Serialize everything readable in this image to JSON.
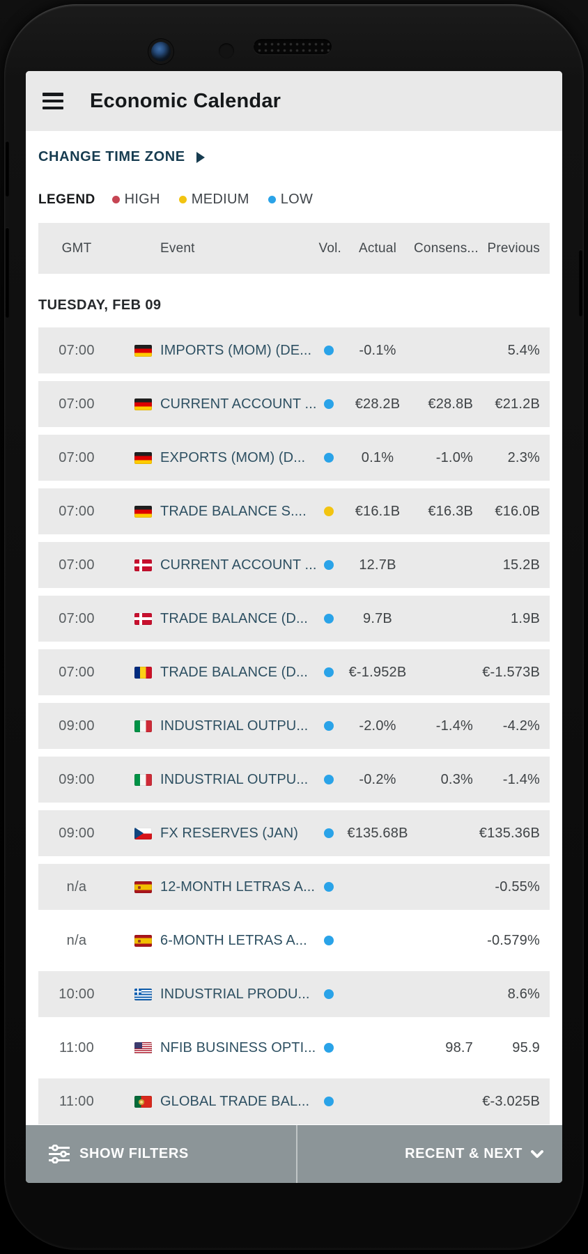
{
  "app": {
    "title": "Economic Calendar"
  },
  "toolbar": {
    "change_time_zone": "CHANGE TIME ZONE"
  },
  "legend": {
    "label": "LEGEND",
    "items": [
      {
        "label": "HIGH",
        "level": "high",
        "color": "#c64553"
      },
      {
        "label": "MEDIUM",
        "level": "medium",
        "color": "#f2c411"
      },
      {
        "label": "LOW",
        "level": "low",
        "color": "#2aa3e8"
      }
    ]
  },
  "table": {
    "headers": {
      "gmt": "GMT",
      "event": "Event",
      "vol": "Vol.",
      "actual": "Actual",
      "consensus": "Consens...",
      "previous": "Previous"
    },
    "day_label": "TUESDAY, FEB 09",
    "rows": [
      {
        "time": "07:00",
        "country": "germany",
        "event": "IMPORTS (MOM) (DE...",
        "vol": "low",
        "actual": "-0.1%",
        "consensus": "",
        "previous": "5.4%",
        "bg": "gray"
      },
      {
        "time": "07:00",
        "country": "germany",
        "event": "CURRENT ACCOUNT ...",
        "vol": "low",
        "actual": "€28.2B",
        "consensus": "€28.8B",
        "previous": "€21.2B",
        "bg": "gray"
      },
      {
        "time": "07:00",
        "country": "germany",
        "event": "EXPORTS (MOM) (D...",
        "vol": "low",
        "actual": "0.1%",
        "consensus": "-1.0%",
        "previous": "2.3%",
        "bg": "gray"
      },
      {
        "time": "07:00",
        "country": "germany",
        "event": "TRADE BALANCE S....",
        "vol": "medium",
        "actual": "€16.1B",
        "consensus": "€16.3B",
        "previous": "€16.0B",
        "bg": "gray"
      },
      {
        "time": "07:00",
        "country": "denmark",
        "event": "CURRENT ACCOUNT ...",
        "vol": "low",
        "actual": "12.7B",
        "consensus": "",
        "previous": "15.2B",
        "bg": "gray"
      },
      {
        "time": "07:00",
        "country": "denmark",
        "event": "TRADE BALANCE (D...",
        "vol": "low",
        "actual": "9.7B",
        "consensus": "",
        "previous": "1.9B",
        "bg": "gray"
      },
      {
        "time": "07:00",
        "country": "romania",
        "event": "TRADE BALANCE (D...",
        "vol": "low",
        "actual": "€-1.952B",
        "consensus": "",
        "previous": "€-1.573B",
        "bg": "gray"
      },
      {
        "time": "09:00",
        "country": "italy",
        "event": "INDUSTRIAL OUTPU...",
        "vol": "low",
        "actual": "-2.0%",
        "consensus": "-1.4%",
        "previous": "-4.2%",
        "bg": "gray"
      },
      {
        "time": "09:00",
        "country": "italy",
        "event": "INDUSTRIAL OUTPU...",
        "vol": "low",
        "actual": "-0.2%",
        "consensus": "0.3%",
        "previous": "-1.4%",
        "bg": "gray"
      },
      {
        "time": "09:00",
        "country": "czech-republic",
        "event": "FX RESERVES (JAN)",
        "vol": "low",
        "actual": "€135.68B",
        "consensus": "",
        "previous": "€135.36B",
        "bg": "gray"
      },
      {
        "time": "n/a",
        "country": "spain",
        "event": "12-MONTH LETRAS A...",
        "vol": "low",
        "actual": "",
        "consensus": "",
        "previous": "-0.55%",
        "bg": "gray"
      },
      {
        "time": "n/a",
        "country": "spain",
        "event": "6-MONTH LETRAS A...",
        "vol": "low",
        "actual": "",
        "consensus": "",
        "previous": "-0.579%",
        "bg": "white"
      },
      {
        "time": "10:00",
        "country": "greece",
        "event": "INDUSTRIAL PRODU...",
        "vol": "low",
        "actual": "",
        "consensus": "",
        "previous": "8.6%",
        "bg": "gray"
      },
      {
        "time": "11:00",
        "country": "usa",
        "event": "NFIB BUSINESS OPTI...",
        "vol": "low",
        "actual": "",
        "consensus": "98.7",
        "previous": "95.9",
        "bg": "white"
      },
      {
        "time": "11:00",
        "country": "portugal",
        "event": "GLOBAL TRADE BAL...",
        "vol": "low",
        "actual": "",
        "consensus": "",
        "previous": "€-3.025B",
        "bg": "gray"
      }
    ]
  },
  "bottom_bar": {
    "show_filters": "SHOW FILTERS",
    "recent_next": "RECENT & NEXT"
  },
  "colors": {
    "volatility": {
      "high": "#c64553",
      "medium": "#f2c411",
      "low": "#2aa3e8"
    },
    "accent_link": "#173c50",
    "event_text": "#2e5062",
    "row_gray": "#eaeaea",
    "bottom_bar": "#8c9598"
  }
}
